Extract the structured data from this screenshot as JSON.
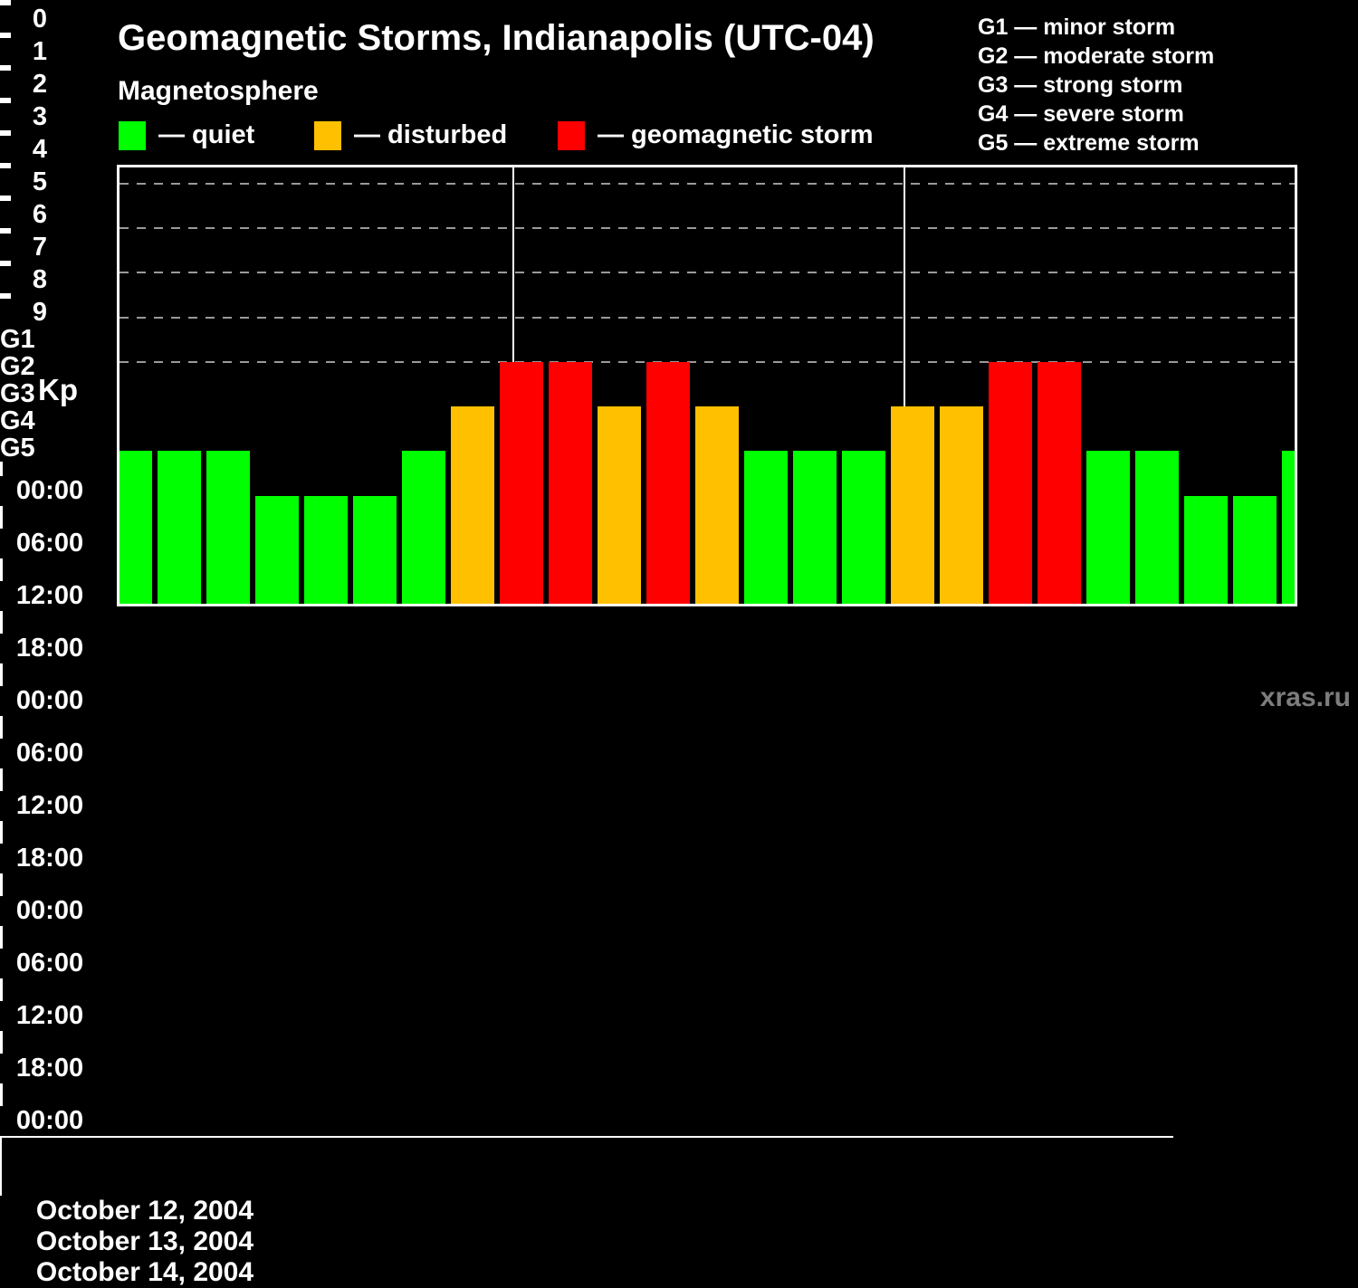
{
  "title": "Geomagnetic Storms, Indianapolis (UTC-04)",
  "subtitle": "Magnetosphere",
  "legend": {
    "items": [
      {
        "key": "quiet",
        "label": "— quiet",
        "color": "#00ff00"
      },
      {
        "key": "disturbed",
        "label": "— disturbed",
        "color": "#ffc000"
      },
      {
        "key": "storm",
        "label": "— geomagnetic storm",
        "color": "#ff0000"
      }
    ]
  },
  "g_legend": [
    "G1 — minor storm",
    "G2 — moderate storm",
    "G3 — strong storm",
    "G4 — severe storm",
    "G5 — extreme storm"
  ],
  "watermark": "xras.ru",
  "chart_data": {
    "type": "bar",
    "title": "Geomagnetic Storms, Indianapolis (UTC-04)",
    "ylabel": "Kp",
    "ylim": [
      0,
      9
    ],
    "y_ticks": [
      0,
      1,
      2,
      3,
      4,
      5,
      6,
      7,
      8,
      9
    ],
    "x_tick_labels": [
      "00:00",
      "06:00",
      "12:00",
      "18:00",
      "00:00",
      "06:00",
      "12:00",
      "18:00",
      "00:00",
      "06:00",
      "12:00",
      "18:00",
      "00:00"
    ],
    "bar_interval_hours": 3,
    "kp_values": [
      3,
      3,
      3,
      2,
      2,
      2,
      3,
      4,
      5,
      5,
      4,
      5,
      4,
      3,
      3,
      3,
      4,
      4,
      5,
      5,
      3,
      3,
      2,
      2,
      3
    ],
    "partial_bars_note": "first and last bars are clipped at the plot edges",
    "days": [
      {
        "date": "October 12, 2004",
        "values": [
          3,
          3,
          3,
          2,
          2,
          2,
          3,
          4
        ]
      },
      {
        "date": "October 13, 2004",
        "values": [
          5,
          5,
          4,
          5,
          4,
          3,
          3,
          3
        ]
      },
      {
        "date": "October 14, 2004",
        "values": [
          4,
          4,
          5,
          5,
          3,
          3,
          2,
          2
        ]
      }
    ],
    "g_levels": [
      {
        "kp": 5,
        "label": "G1"
      },
      {
        "kp": 6,
        "label": "G2"
      },
      {
        "kp": 7,
        "label": "G3"
      },
      {
        "kp": 8,
        "label": "G4"
      },
      {
        "kp": 9,
        "label": "G5"
      }
    ],
    "colors": {
      "quiet": "#00ff00",
      "disturbed": "#ffc000",
      "storm": "#ff0000"
    },
    "thresholds": {
      "disturbed_min": 4,
      "storm_min": 5
    },
    "grid": "dashed horizontal lines at Kp 5 to 9",
    "legend_position": "top"
  }
}
